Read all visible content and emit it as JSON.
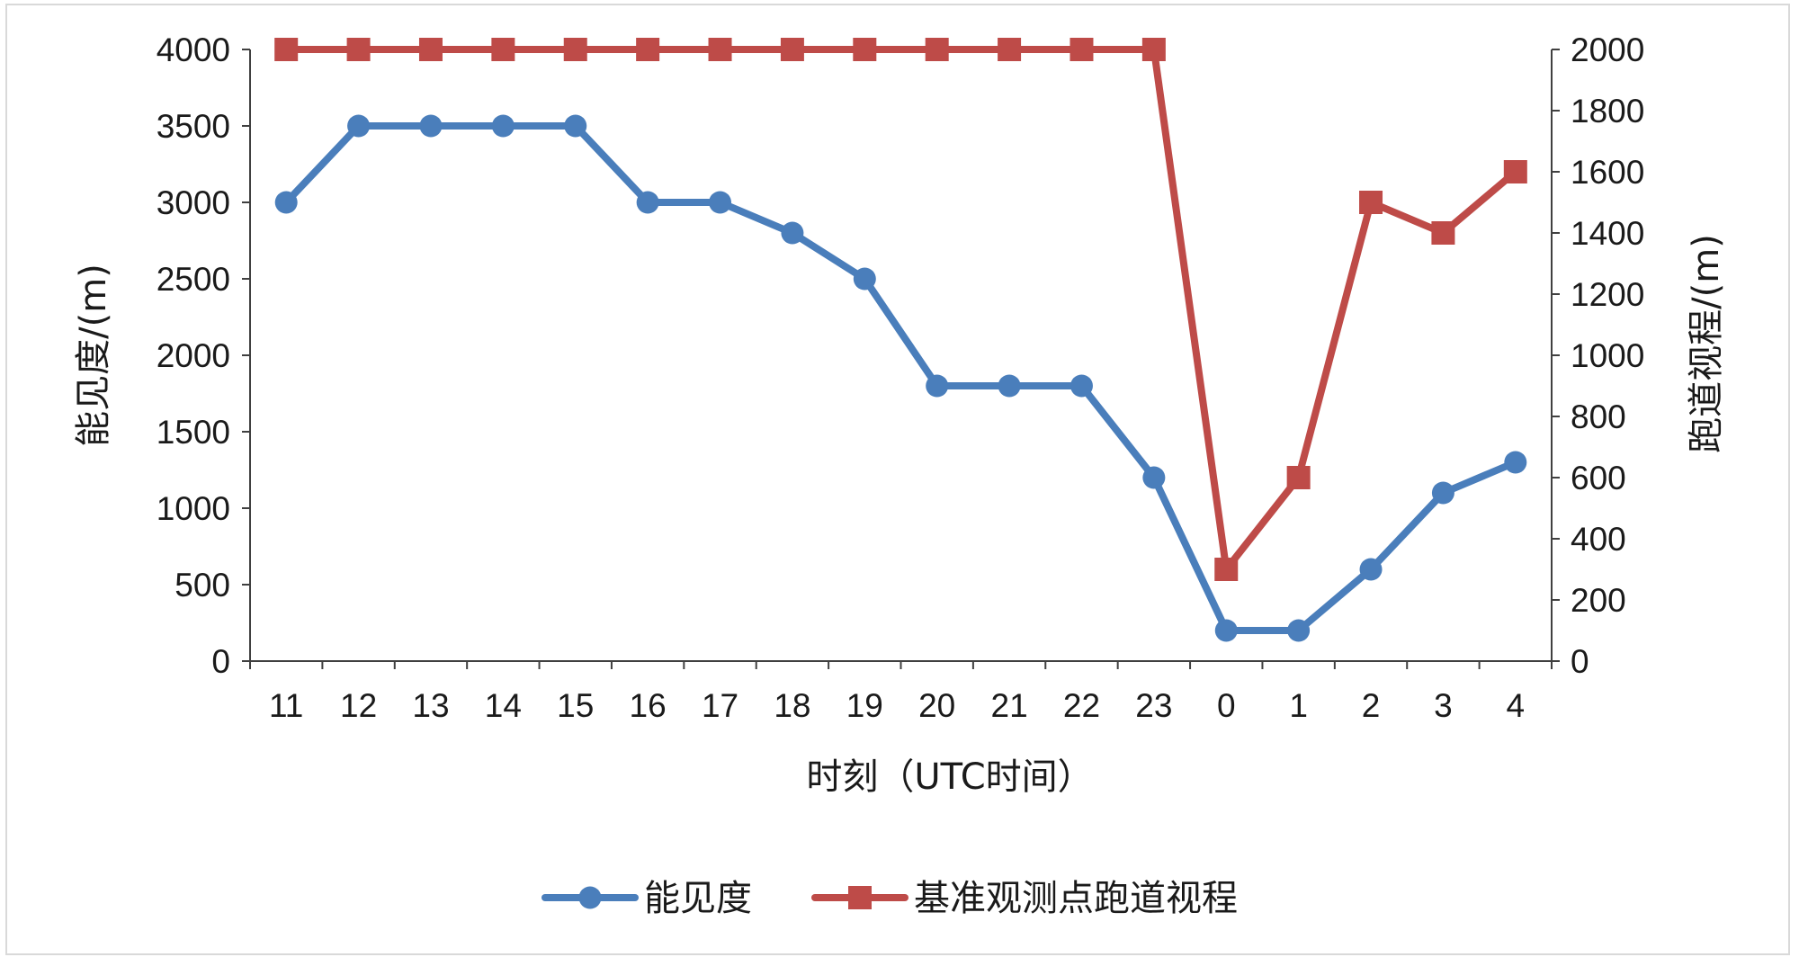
{
  "chart_data": {
    "type": "line",
    "categories": [
      "11",
      "12",
      "13",
      "14",
      "15",
      "16",
      "17",
      "18",
      "19",
      "20",
      "21",
      "22",
      "23",
      "0",
      "1",
      "2",
      "3",
      "4"
    ],
    "xlabel": "时刻（UTC时间）",
    "ylabel_left": "能见度/(m)",
    "ylabel_right": "跑道视程/(m)",
    "ylim_left": [
      0,
      4000
    ],
    "ylim_right": [
      0,
      2000
    ],
    "yticks_left": [
      "0",
      "500",
      "1000",
      "1500",
      "2000",
      "2500",
      "3000",
      "3500",
      "4000"
    ],
    "yticks_right": [
      "0",
      "200",
      "400",
      "600",
      "800",
      "1000",
      "1200",
      "1400",
      "1600",
      "1800",
      "2000"
    ],
    "grid": false,
    "legend_position": "bottom",
    "series": [
      {
        "name": "能见度",
        "axis": "left",
        "color": "#4a7ebb",
        "marker": "circle",
        "values": [
          3000,
          3500,
          3500,
          3500,
          3500,
          3000,
          3000,
          2800,
          2500,
          1800,
          1800,
          1800,
          1200,
          200,
          200,
          600,
          1100,
          1300
        ]
      },
      {
        "name": "基准观测点跑道视程",
        "axis": "right",
        "color": "#be4b48",
        "marker": "square",
        "values": [
          2000,
          2000,
          2000,
          2000,
          2000,
          2000,
          2000,
          2000,
          2000,
          2000,
          2000,
          2000,
          2000,
          300,
          600,
          1500,
          1400,
          1600
        ]
      }
    ]
  }
}
